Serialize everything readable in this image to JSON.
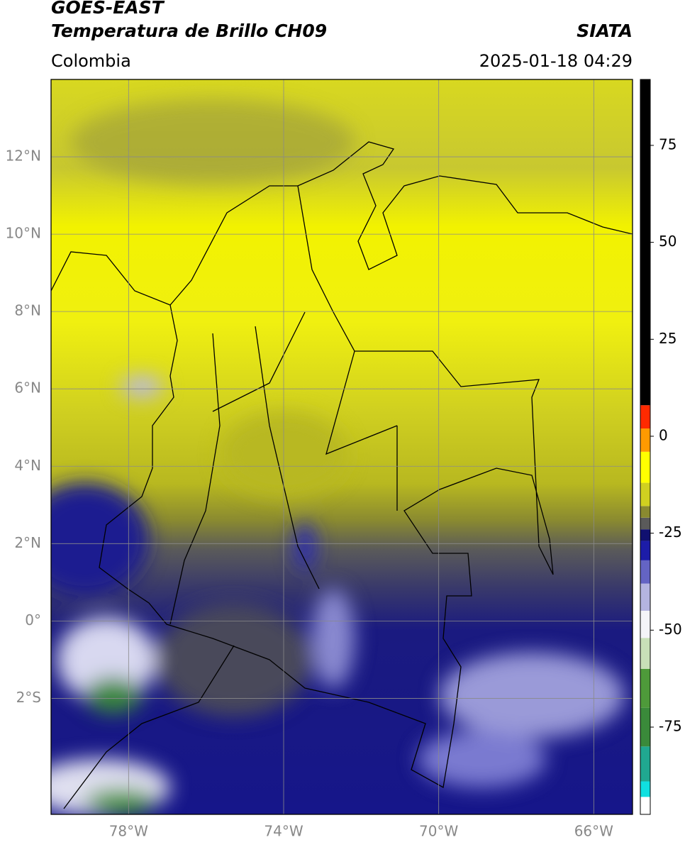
{
  "header": {
    "satellite": "GOES-EAST",
    "product": "Temperatura de Brillo CH09",
    "source": "SIATA",
    "region": "Colombia",
    "timestamp": "2025-01-18 04:29"
  },
  "map": {
    "lon_range": [
      -80,
      -65
    ],
    "lat_range": [
      -5,
      14
    ],
    "grid": true,
    "grid_color": "#8a8a8a",
    "lon_ticks": [
      {
        "value": -78,
        "label": "78°W"
      },
      {
        "value": -74,
        "label": "74°W"
      },
      {
        "value": -70,
        "label": "70°W"
      },
      {
        "value": -66,
        "label": "66°W"
      }
    ],
    "lat_ticks": [
      {
        "value": 12,
        "label": "12°N"
      },
      {
        "value": 10,
        "label": "10°N"
      },
      {
        "value": 8,
        "label": "8°N"
      },
      {
        "value": 6,
        "label": "6°N"
      },
      {
        "value": 4,
        "label": "4°N"
      },
      {
        "value": 2,
        "label": "2°N"
      },
      {
        "value": 0,
        "label": "0°"
      },
      {
        "value": -2,
        "label": "2°S"
      }
    ]
  },
  "colorbar": {
    "range": [
      -97.5,
      92
    ],
    "ticks": [
      75,
      50,
      25,
      0,
      -25,
      -50,
      -75
    ],
    "segments": [
      {
        "from": -97.5,
        "to": -93,
        "color": "#ffffff"
      },
      {
        "from": -93,
        "to": -89,
        "color": "#10e0e0"
      },
      {
        "from": -89,
        "to": -80,
        "color": "#20a890"
      },
      {
        "from": -80,
        "to": -70,
        "color": "#3a8a3a"
      },
      {
        "from": -70,
        "to": -60,
        "color": "#4e9a3a"
      },
      {
        "from": -60,
        "to": -52,
        "color": "#c8e0b8"
      },
      {
        "from": -52,
        "to": -45,
        "color": "#f4f4f8"
      },
      {
        "from": -45,
        "to": -38,
        "color": "#b4b4e0"
      },
      {
        "from": -38,
        "to": -32,
        "color": "#6464c4"
      },
      {
        "from": -32,
        "to": -27,
        "color": "#1c1ca8"
      },
      {
        "from": -27,
        "to": -24,
        "color": "#101070"
      },
      {
        "from": -24,
        "to": -21,
        "color": "#5a5a5a"
      },
      {
        "from": -21,
        "to": -18,
        "color": "#8a8a30"
      },
      {
        "from": -18,
        "to": -12,
        "color": "#d0d020"
      },
      {
        "from": -12,
        "to": -4,
        "color": "#ffff00"
      },
      {
        "from": -4,
        "to": 2,
        "color": "#ff9a00"
      },
      {
        "from": 2,
        "to": 8,
        "color": "#ff2a00"
      },
      {
        "from": 8,
        "to": 92,
        "color": "#000000"
      }
    ]
  }
}
